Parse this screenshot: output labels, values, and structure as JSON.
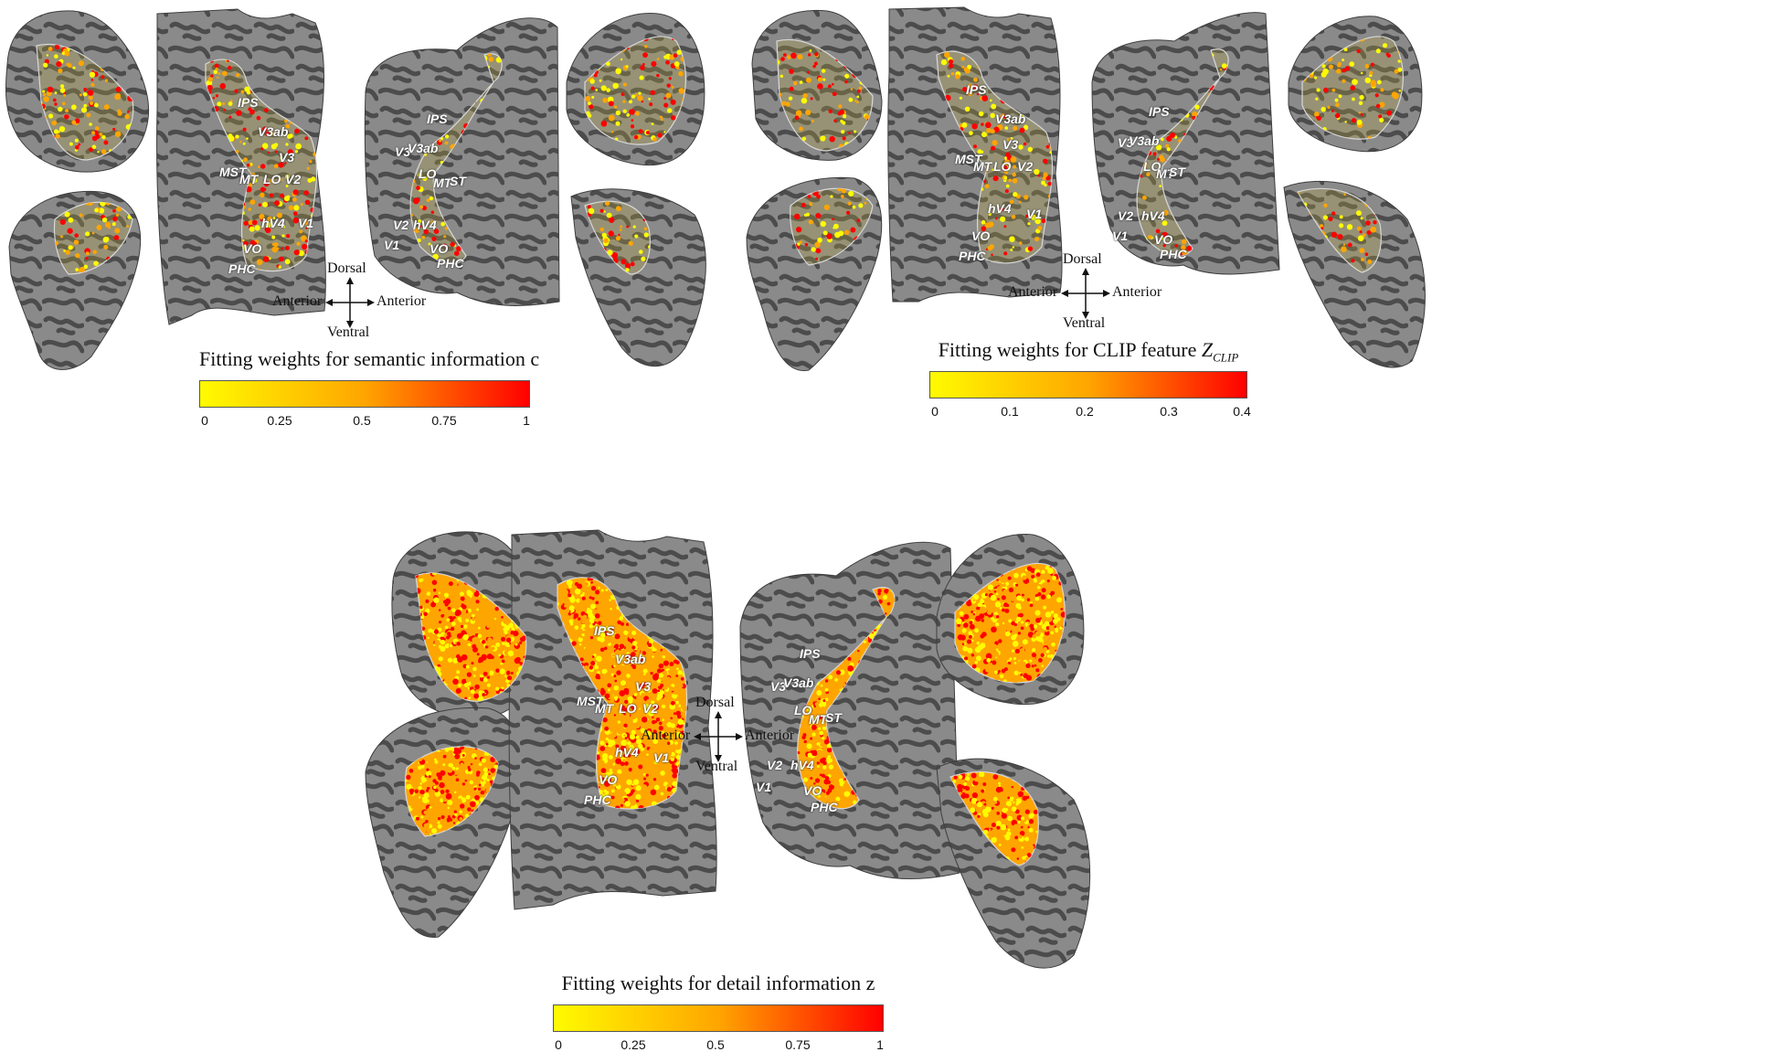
{
  "compass": {
    "dorsal": "Dorsal",
    "ventral": "Ventral",
    "anterior_left": "Anterior",
    "anterior_right": "Anterior"
  },
  "panels": [
    {
      "id": "semantic",
      "colorbar": {
        "title": "Fitting weights for semantic information c",
        "ticks": [
          "0",
          "0.25",
          "0.5",
          "0.75",
          "1"
        ],
        "min": 0,
        "max": 1
      },
      "activation_density": 0.28,
      "left_rois": [
        "IPS",
        "V3ab",
        "V3",
        "MST",
        "MT",
        "LO",
        "V2",
        "hV4",
        "V1",
        "VO",
        "PHC"
      ],
      "right_rois": [
        "IPS",
        "V3",
        "V3ab",
        "LO",
        "MT",
        "ST",
        "V2",
        "hV4",
        "V1",
        "VO",
        "PHC"
      ]
    },
    {
      "id": "clip",
      "colorbar": {
        "title_prefix": "Fitting weights for CLIP feature ",
        "title_var": "Z",
        "title_sub": "CLIP",
        "ticks": [
          "0",
          "0.1",
          "0.2",
          "0.3",
          "0.4"
        ],
        "min": 0,
        "max": 0.4
      },
      "activation_density": 0.22,
      "left_rois": [
        "IPS",
        "V3ab",
        "V3",
        "MST",
        "MT",
        "LO",
        "V2",
        "hV4",
        "V1",
        "VO",
        "PHC"
      ],
      "right_rois": [
        "IPS",
        "V3",
        "V3ab",
        "LO",
        "MT",
        "ST",
        "V2",
        "hV4",
        "V1",
        "VO",
        "PHC"
      ]
    },
    {
      "id": "detail",
      "colorbar": {
        "title": "Fitting weights for detail information z",
        "ticks": [
          "0",
          "0.25",
          "0.5",
          "0.75",
          "1"
        ],
        "min": 0,
        "max": 1
      },
      "activation_density": 0.85,
      "left_rois": [
        "IPS",
        "V3ab",
        "V3",
        "MST",
        "MT",
        "LO",
        "V2",
        "hV4",
        "V1",
        "VO",
        "PHC"
      ],
      "right_rois": [
        "IPS",
        "V3",
        "V3ab",
        "LO",
        "MT",
        "ST",
        "V2",
        "hV4",
        "V1",
        "VO",
        "PHC"
      ]
    }
  ],
  "colors": {
    "cortex_light": "#8a8a8a",
    "cortex_dark": "#4c4c4c",
    "roi_outline": "#d8d8d8",
    "heat_low": "#fffb00",
    "heat_mid": "#ffa500",
    "heat_high": "#ff0000"
  }
}
